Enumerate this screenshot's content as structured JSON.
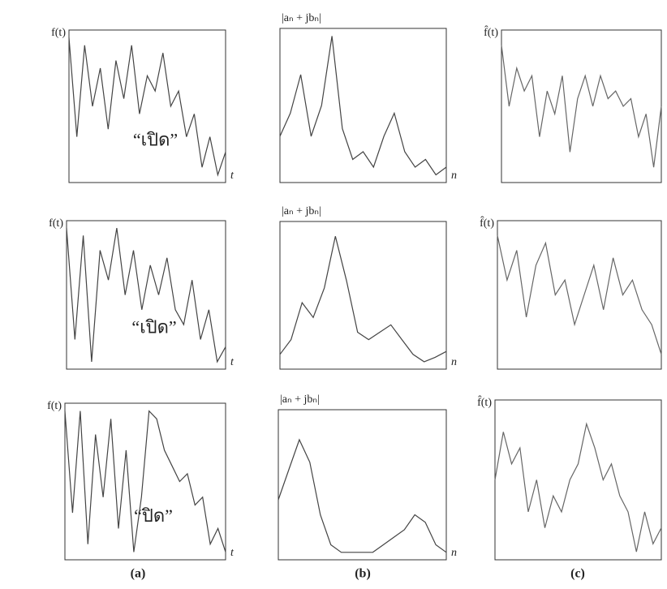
{
  "chart_data": [
    {
      "type": "line",
      "ylabel": "f(t)",
      "xlabel": "t",
      "annotation": "“เปิด”",
      "color": "#444",
      "xlim": [
        0,
        20
      ],
      "ylim": [
        0,
        1
      ],
      "x": [
        0,
        1,
        2,
        3,
        4,
        5,
        6,
        7,
        8,
        9,
        10,
        11,
        12,
        13,
        14,
        15,
        16,
        17,
        18,
        19,
        20
      ],
      "values": [
        0.95,
        0.3,
        0.9,
        0.5,
        0.75,
        0.35,
        0.8,
        0.55,
        0.9,
        0.45,
        0.7,
        0.6,
        0.85,
        0.5,
        0.6,
        0.3,
        0.45,
        0.1,
        0.3,
        0.05,
        0.2
      ]
    },
    {
      "type": "line",
      "ylabel": "|aₙ + jbₙ|",
      "xlabel": "n",
      "color": "#444",
      "xlim": [
        0,
        16
      ],
      "ylim": [
        0,
        1
      ],
      "x": [
        0,
        1,
        2,
        3,
        4,
        5,
        6,
        7,
        8,
        9,
        10,
        11,
        12,
        13,
        14,
        15,
        16
      ],
      "values": [
        0.3,
        0.45,
        0.7,
        0.3,
        0.5,
        0.95,
        0.35,
        0.15,
        0.2,
        0.1,
        0.3,
        0.45,
        0.2,
        0.1,
        0.15,
        0.05,
        0.1
      ]
    },
    {
      "type": "line",
      "ylabel": "f̂(t)",
      "color": "#666",
      "xlim": [
        0,
        21
      ],
      "ylim": [
        0,
        1
      ],
      "x": [
        0,
        1,
        2,
        3,
        4,
        5,
        6,
        7,
        8,
        9,
        10,
        11,
        12,
        13,
        14,
        15,
        16,
        17,
        18,
        19,
        20,
        21
      ],
      "values": [
        0.9,
        0.5,
        0.75,
        0.6,
        0.7,
        0.3,
        0.6,
        0.45,
        0.7,
        0.2,
        0.55,
        0.7,
        0.5,
        0.7,
        0.55,
        0.6,
        0.5,
        0.55,
        0.3,
        0.45,
        0.1,
        0.5
      ]
    },
    {
      "type": "line",
      "ylabel": "f(t)",
      "xlabel": "t",
      "annotation": "“เปิด”",
      "color": "#444",
      "xlim": [
        0,
        19
      ],
      "ylim": [
        0,
        1
      ],
      "x": [
        0,
        1,
        2,
        3,
        4,
        5,
        6,
        7,
        8,
        9,
        10,
        11,
        12,
        13,
        14,
        15,
        16,
        17,
        18,
        19
      ],
      "values": [
        0.95,
        0.2,
        0.9,
        0.05,
        0.8,
        0.6,
        0.95,
        0.5,
        0.8,
        0.4,
        0.7,
        0.5,
        0.75,
        0.4,
        0.3,
        0.6,
        0.2,
        0.4,
        0.05,
        0.15
      ]
    },
    {
      "type": "line",
      "ylabel": "|aₙ + jbₙ|",
      "xlabel": "n",
      "color": "#444",
      "xlim": [
        0,
        15
      ],
      "ylim": [
        0,
        1
      ],
      "x": [
        0,
        1,
        2,
        3,
        4,
        5,
        6,
        7,
        8,
        9,
        10,
        11,
        12,
        13,
        14,
        15
      ],
      "values": [
        0.1,
        0.2,
        0.45,
        0.35,
        0.55,
        0.9,
        0.6,
        0.25,
        0.2,
        0.25,
        0.3,
        0.2,
        0.1,
        0.05,
        0.08,
        0.12
      ]
    },
    {
      "type": "line",
      "ylabel": "f̂(t)",
      "color": "#666",
      "xlim": [
        0,
        17
      ],
      "ylim": [
        0,
        1
      ],
      "x": [
        0,
        1,
        2,
        3,
        4,
        5,
        6,
        7,
        8,
        9,
        10,
        11,
        12,
        13,
        14,
        15,
        16,
        17
      ],
      "values": [
        0.9,
        0.6,
        0.8,
        0.35,
        0.7,
        0.85,
        0.5,
        0.6,
        0.3,
        0.5,
        0.7,
        0.4,
        0.75,
        0.5,
        0.6,
        0.4,
        0.3,
        0.1
      ]
    },
    {
      "type": "line",
      "ylabel": "f(t)",
      "xlabel": "t",
      "annotation": "“ปิด”",
      "color": "#444",
      "xlim": [
        0,
        21
      ],
      "ylim": [
        0,
        1
      ],
      "x": [
        0,
        1,
        2,
        3,
        4,
        5,
        6,
        7,
        8,
        9,
        10,
        11,
        12,
        13,
        14,
        15,
        16,
        17,
        18,
        19,
        20,
        21
      ],
      "values": [
        0.95,
        0.3,
        0.95,
        0.1,
        0.8,
        0.4,
        0.9,
        0.2,
        0.7,
        0.05,
        0.4,
        0.95,
        0.9,
        0.7,
        0.6,
        0.5,
        0.55,
        0.35,
        0.4,
        0.1,
        0.2,
        0.05
      ]
    },
    {
      "type": "line",
      "ylabel": "|aₙ + jbₙ|",
      "xlabel": "n",
      "color": "#444",
      "xlim": [
        0,
        16
      ],
      "ylim": [
        0,
        1
      ],
      "x": [
        0,
        1,
        2,
        3,
        4,
        5,
        6,
        7,
        8,
        9,
        10,
        11,
        12,
        13,
        14,
        15,
        16
      ],
      "values": [
        0.4,
        0.6,
        0.8,
        0.65,
        0.3,
        0.1,
        0.05,
        0.05,
        0.05,
        0.05,
        0.1,
        0.15,
        0.2,
        0.3,
        0.25,
        0.1,
        0.05
      ]
    },
    {
      "type": "line",
      "ylabel": "f̂(t)",
      "color": "#666",
      "xlim": [
        0,
        20
      ],
      "ylim": [
        0,
        1
      ],
      "x": [
        0,
        1,
        2,
        3,
        4,
        5,
        6,
        7,
        8,
        9,
        10,
        11,
        12,
        13,
        14,
        15,
        16,
        17,
        18,
        19,
        20
      ],
      "values": [
        0.5,
        0.8,
        0.6,
        0.7,
        0.3,
        0.5,
        0.2,
        0.4,
        0.3,
        0.5,
        0.6,
        0.85,
        0.7,
        0.5,
        0.6,
        0.4,
        0.3,
        0.05,
        0.3,
        0.1,
        0.2
      ]
    }
  ],
  "captions": [
    "(a)",
    "(b)",
    "(c)"
  ]
}
